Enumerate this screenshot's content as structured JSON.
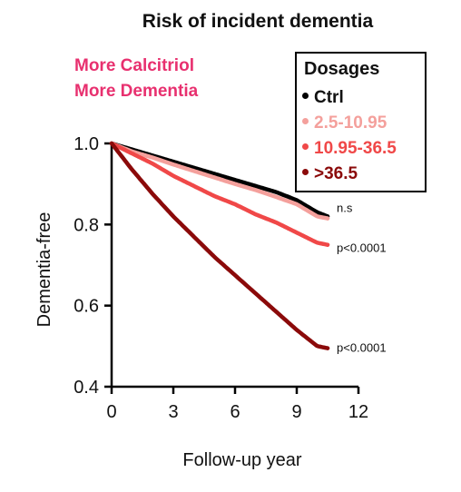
{
  "chart_data": {
    "type": "line",
    "title": "Risk of incident dementia",
    "xlabel": "Follow-up year",
    "ylabel": "Dementia-free",
    "xlim": [
      0,
      12
    ],
    "ylim": [
      0.4,
      1.0
    ],
    "xticks": [
      "0",
      "3",
      "6",
      "9",
      "12"
    ],
    "yticks": [
      "0.4",
      "0.6",
      "0.8",
      "1.0"
    ],
    "legend_title": "Dosages",
    "legend_position": "top-right",
    "annotations": [
      "More Calcitriol",
      "More Dementia"
    ],
    "annotation_color": "#e8306f",
    "series": [
      {
        "name": "Ctrl",
        "color": "#000000",
        "x": [
          0,
          1,
          2,
          3,
          4,
          5,
          6,
          7,
          8,
          9,
          10,
          10.5
        ],
        "y": [
          1.0,
          0.985,
          0.97,
          0.955,
          0.94,
          0.925,
          0.91,
          0.895,
          0.88,
          0.86,
          0.83,
          0.82
        ],
        "pvalue": "n.s"
      },
      {
        "name": "2.5-10.95",
        "color": "#f4a09c",
        "x": [
          0,
          1,
          2,
          3,
          4,
          5,
          6,
          7,
          8,
          9,
          10,
          10.5
        ],
        "y": [
          1.0,
          0.98,
          0.965,
          0.948,
          0.932,
          0.916,
          0.9,
          0.885,
          0.868,
          0.85,
          0.82,
          0.815
        ],
        "pvalue": ""
      },
      {
        "name": "10.95-36.5",
        "color": "#f04848",
        "x": [
          0,
          1,
          2,
          3,
          4,
          5,
          6,
          7,
          8,
          9,
          10,
          10.5
        ],
        "y": [
          1.0,
          0.975,
          0.95,
          0.92,
          0.895,
          0.87,
          0.85,
          0.825,
          0.805,
          0.78,
          0.755,
          0.75
        ],
        "pvalue": "p<0.0001"
      },
      {
        "name": ">36.5",
        "color": "#8b0a0a",
        "x": [
          0,
          1,
          2,
          3,
          4,
          5,
          6,
          7,
          8,
          9,
          10,
          10.5
        ],
        "y": [
          1.0,
          0.935,
          0.875,
          0.82,
          0.77,
          0.72,
          0.675,
          0.63,
          0.585,
          0.54,
          0.5,
          0.495
        ],
        "pvalue": "p<0.0001"
      }
    ]
  }
}
